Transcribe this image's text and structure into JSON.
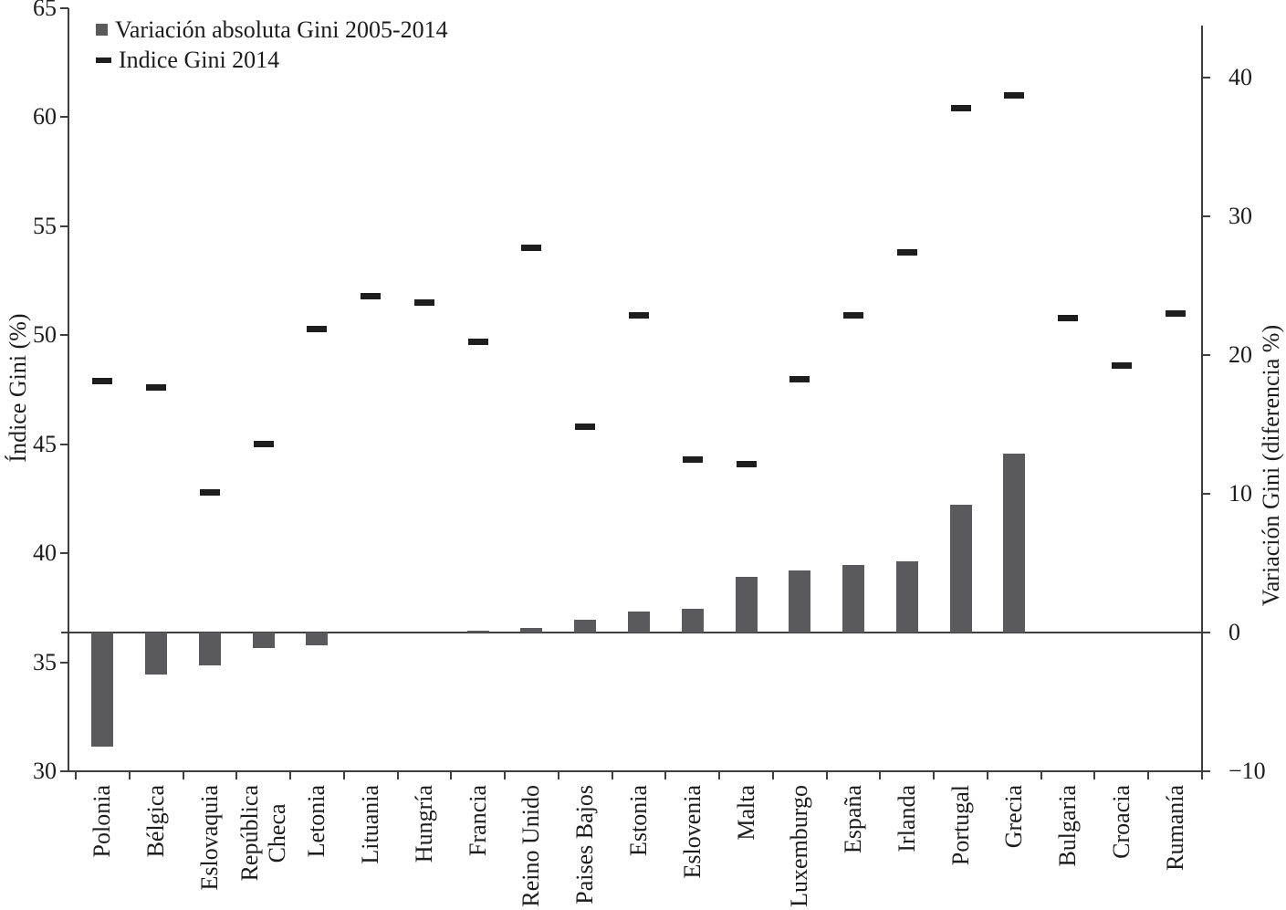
{
  "chart_data": {
    "type": "bar",
    "subtype": "combo-bar-with-dash-markers",
    "categories": [
      "Polonia",
      "Bélgica",
      "Eslovaquia",
      "República\nCheca",
      "Letonia",
      "Lituania",
      "Hungría",
      "Francia",
      "Reino Unido",
      "Paises Bajos",
      "Estonia",
      "Eslovenia",
      "Malta",
      "Luxemburgo",
      "España",
      "Irlanda",
      "Portugal",
      "Grecia",
      "Bulgaria",
      "Croacia",
      "Rumanía"
    ],
    "series": [
      {
        "name": "Variación absoluta Gini 2005-2014",
        "type": "bar",
        "axis": "right",
        "color": "#5a5a5c",
        "values": [
          -8.2,
          -3.0,
          -2.4,
          -1.1,
          -0.9,
          0,
          0,
          0.1,
          0.3,
          0.9,
          1.5,
          1.7,
          4.0,
          4.5,
          4.9,
          5.1,
          9.2,
          12.9,
          0,
          0,
          0
        ]
      },
      {
        "name": "Indice Gini 2014",
        "type": "dash",
        "axis": "left",
        "color": "#1e1e1e",
        "values": [
          47.9,
          47.6,
          42.8,
          45.0,
          50.3,
          51.8,
          51.5,
          49.7,
          54.0,
          45.8,
          50.9,
          44.3,
          44.1,
          48.0,
          50.9,
          53.8,
          60.4,
          61.0,
          50.8,
          48.6,
          51.0
        ]
      }
    ],
    "left_axis": {
      "label": "Índice Gini (%)",
      "min": 30,
      "max": 65,
      "ticks": [
        65,
        60,
        55,
        50,
        45,
        40,
        35,
        30
      ]
    },
    "right_axis": {
      "label": "Variación Gini (diferencia %)",
      "min": -10,
      "max": 40,
      "ticks": [
        40,
        30,
        20,
        10,
        0,
        -10
      ],
      "zero_line": 0
    },
    "legend_position": "top-left",
    "grid": false,
    "background": "#ffffff",
    "colors": {
      "bar": "#5a5a5c",
      "dash": "#1e1e1e",
      "axis": "#3f3f3f",
      "text": "#1c1c1c"
    }
  }
}
